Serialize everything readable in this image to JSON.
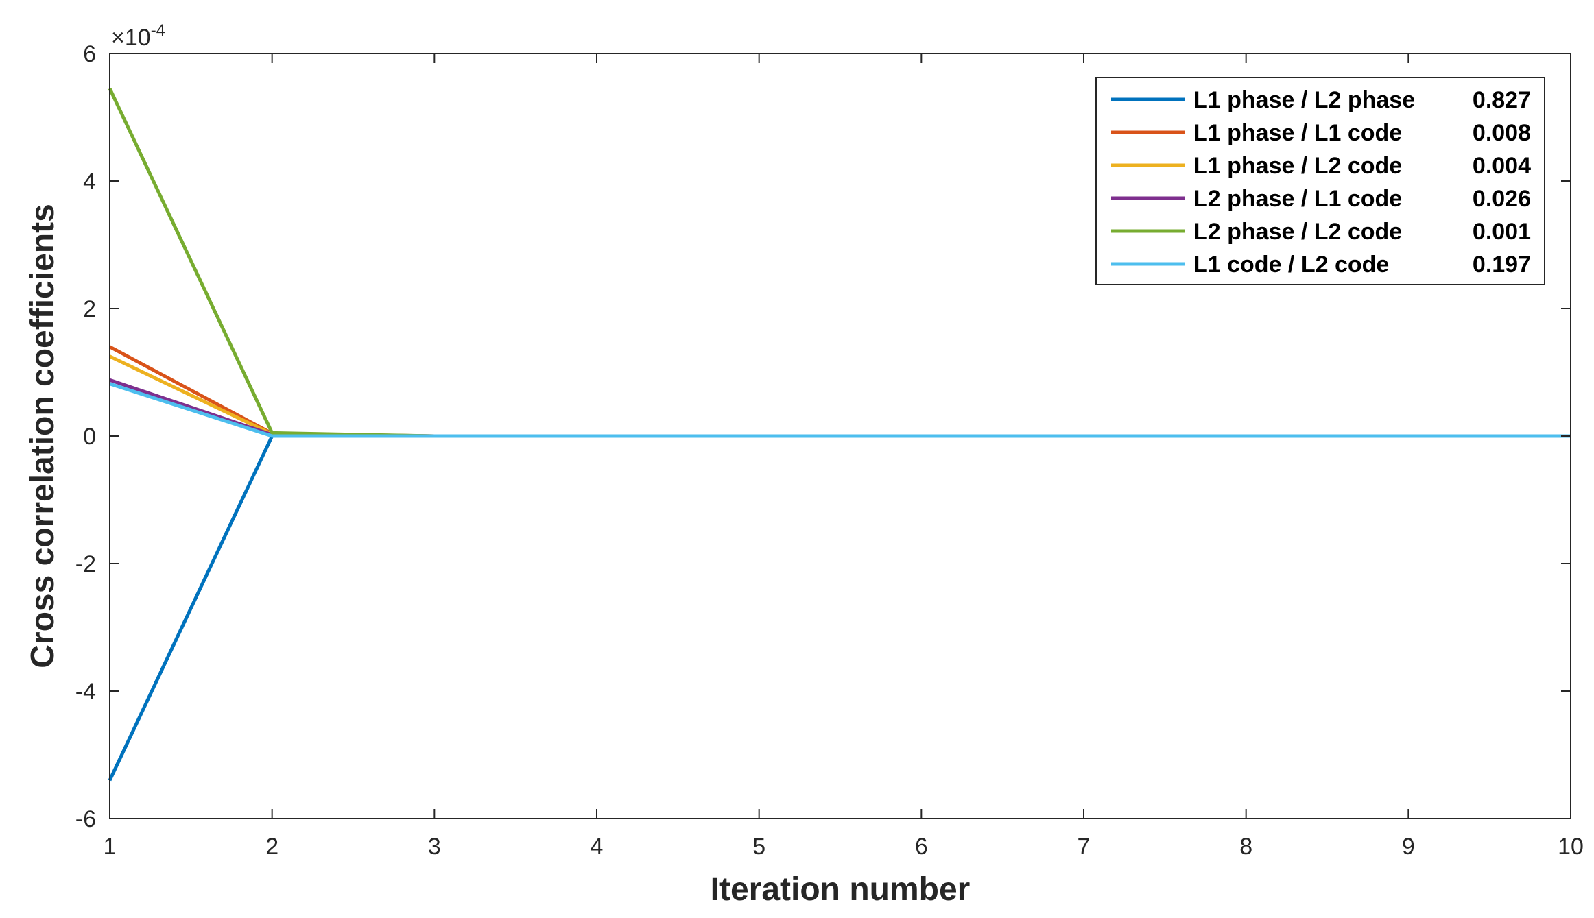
{
  "chart_data": {
    "type": "line",
    "xlabel": "Iteration number",
    "ylabel": "Cross correlation coefficients",
    "exponent_label": "×10",
    "exponent_power": "-4",
    "xlim": [
      1,
      10
    ],
    "ylim": [
      -6,
      6
    ],
    "x_ticks": [
      "1",
      "2",
      "3",
      "4",
      "5",
      "6",
      "7",
      "8",
      "9",
      "10"
    ],
    "y_ticks": [
      "-6",
      "-4",
      "-2",
      "0",
      "2",
      "4",
      "6"
    ],
    "grid": false,
    "legend_position": "top-right",
    "x": [
      1,
      2,
      3,
      4,
      5,
      6,
      7,
      8,
      9,
      10
    ],
    "series": [
      {
        "name": "L1 phase / L2 phase",
        "value": "0.827",
        "color": "#0072BD",
        "values": [
          -5.4,
          0.0,
          0,
          0,
          0,
          0,
          0,
          0,
          0,
          0
        ]
      },
      {
        "name": "L1 phase / L1 code",
        "value": "0.008",
        "color": "#D95319",
        "values": [
          1.4,
          0.04,
          0,
          0,
          0,
          0,
          0,
          0,
          0,
          0
        ]
      },
      {
        "name": "L1 phase / L2 code",
        "value": "0.004",
        "color": "#EDB120",
        "values": [
          1.25,
          0.03,
          0,
          0,
          0,
          0,
          0,
          0,
          0,
          0
        ]
      },
      {
        "name": "L2 phase / L1 code",
        "value": "0.026",
        "color": "#7E2F8E",
        "values": [
          0.88,
          0.02,
          0,
          0,
          0,
          0,
          0,
          0,
          0,
          0
        ]
      },
      {
        "name": "L2 phase / L2 code",
        "value": "0.001",
        "color": "#77AC30",
        "values": [
          5.45,
          0.05,
          0,
          0,
          0,
          0,
          0,
          0,
          0,
          0
        ]
      },
      {
        "name": "L1 code   / L2 code",
        "value": "0.197",
        "color": "#4DBEEE",
        "values": [
          0.82,
          0.0,
          0,
          0,
          0,
          0,
          0,
          0,
          0,
          0
        ]
      }
    ]
  }
}
